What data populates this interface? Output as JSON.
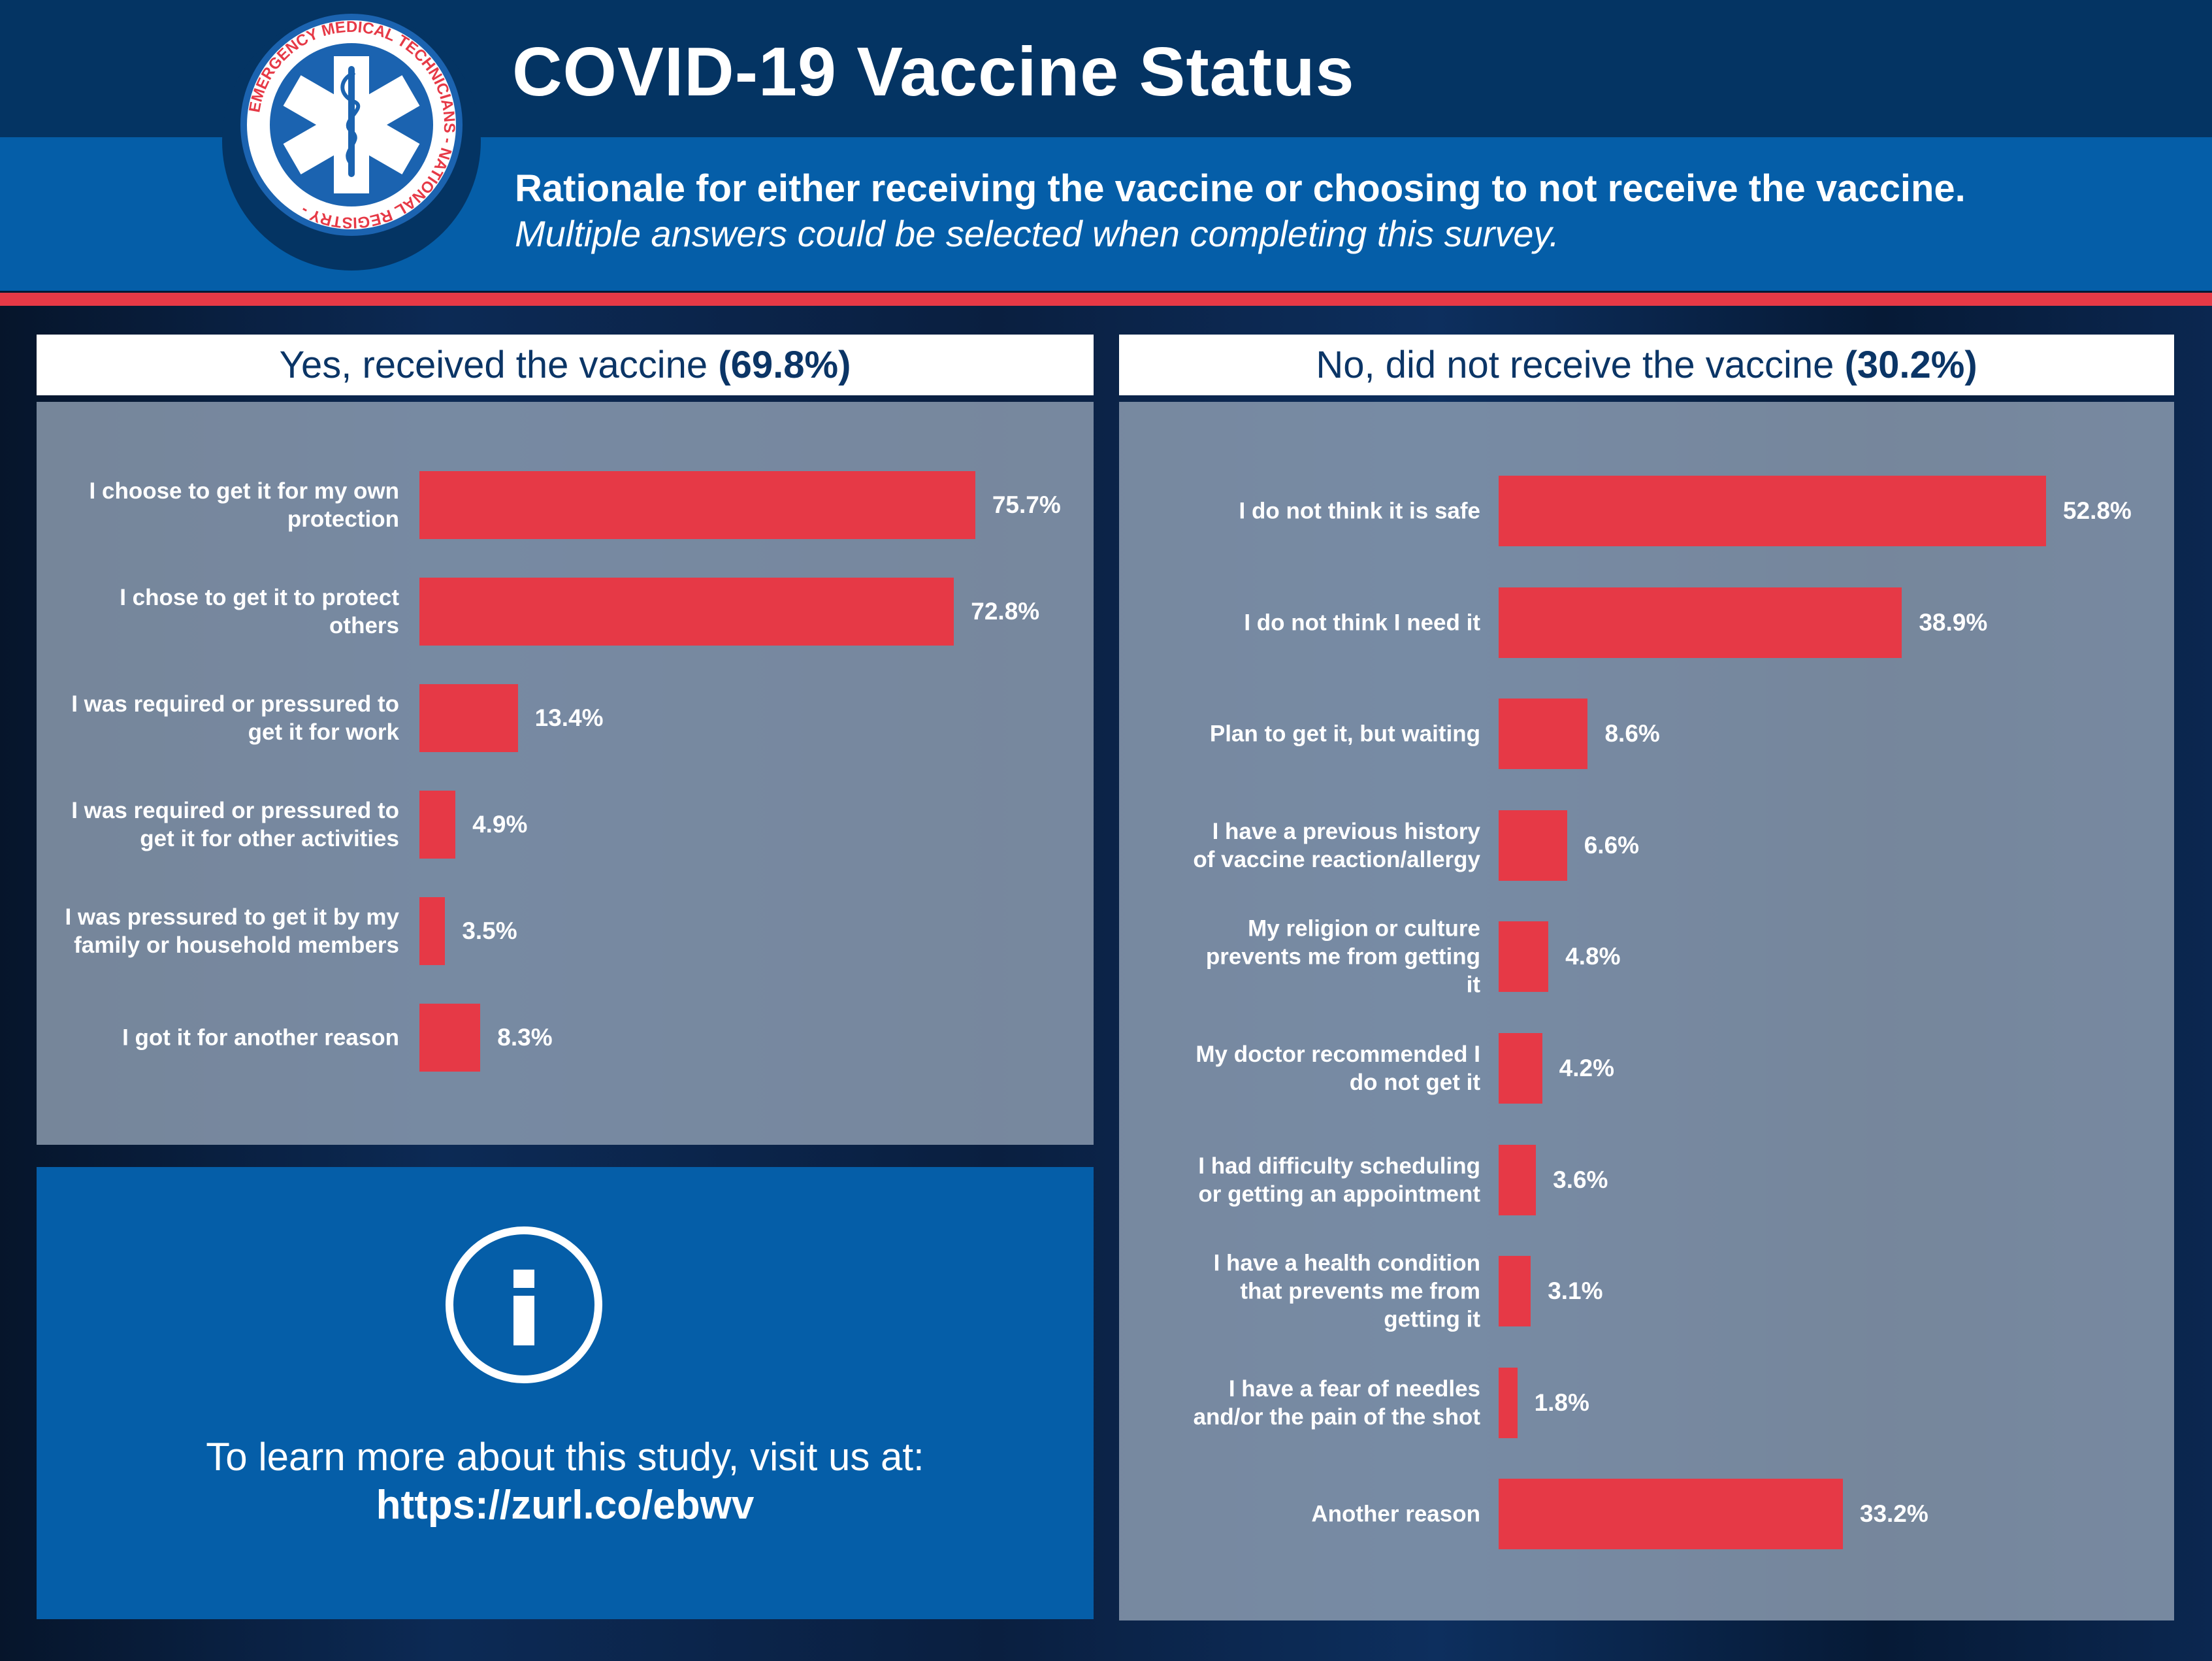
{
  "header": {
    "title": "COVID-19 Vaccine Status",
    "subtitle": "Rationale for either receiving the vaccine or choosing to not receive the vaccine.",
    "note": "Multiple answers could be selected when completing this survey.",
    "logo_text": "NATIONAL REGISTRY - EMERGENCY MEDICAL TECHNICIANS"
  },
  "info": {
    "text": "To learn more about this study, visit us at:",
    "url": "https://zurl.co/ebwv"
  },
  "colors": {
    "bar": "#e63946",
    "navy": "#043463",
    "blue": "#055ea8"
  },
  "chart_data": [
    {
      "type": "bar",
      "orientation": "horizontal",
      "title": "Yes, received the vaccine",
      "title_value": "(69.8%)",
      "categories": [
        "I choose to get it for my own protection",
        "I chose to get it to protect others",
        "I was required or pressured to get it for work",
        "I was required or pressured to get it for other activities",
        "I was pressured to get it by my family or household members",
        "I got it for another reason"
      ],
      "values": [
        75.7,
        72.8,
        13.4,
        4.9,
        3.5,
        8.3
      ],
      "labels": [
        "75.7%",
        "72.8%",
        "13.4%",
        "4.9%",
        "3.5%",
        "8.3%"
      ],
      "xlim": [
        0,
        100
      ]
    },
    {
      "type": "bar",
      "orientation": "horizontal",
      "title": "No, did not receive the vaccine",
      "title_value": "(30.2%)",
      "categories": [
        "I do not think it is safe",
        "I do not think I need it",
        "Plan to get it, but waiting",
        "I have a previous history of vaccine reaction/allergy",
        "My religion or culture prevents me from getting it",
        "My doctor recommended I do not get it",
        "I had difficulty scheduling or getting an appointment",
        "I have a health condition that prevents me from getting it",
        "I have a fear of needles and/or the pain of the shot",
        "Another reason"
      ],
      "values": [
        52.8,
        38.9,
        8.6,
        6.6,
        4.8,
        4.2,
        3.6,
        3.1,
        1.8,
        33.2
      ],
      "labels": [
        "52.8%",
        "38.9%",
        "8.6%",
        "6.6%",
        "4.8%",
        "4.2%",
        "3.6%",
        "3.1%",
        "1.8%",
        "33.2%"
      ],
      "xlim": [
        0,
        100
      ]
    }
  ]
}
